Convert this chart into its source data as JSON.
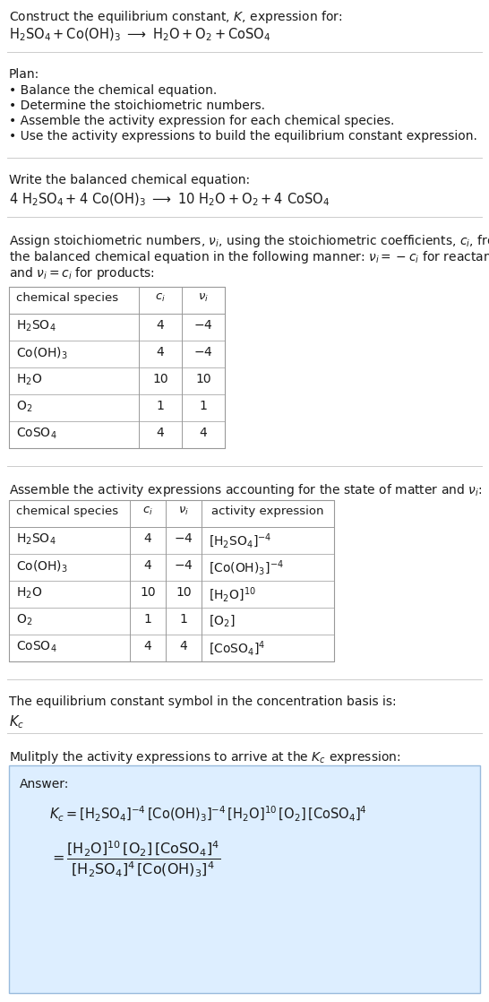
{
  "title_line1": "Construct the equilibrium constant, $K$, expression for:",
  "title_line2_plain": "H₂SO₄ + Co(OH)₃  ⟶  H₂O + O₂ + CoSO₄",
  "plan_header": "Plan:",
  "plan_items": [
    "• Balance the chemical equation.",
    "• Determine the stoichiometric numbers.",
    "• Assemble the activity expression for each chemical species.",
    "• Use the activity expressions to build the equilibrium constant expression."
  ],
  "balanced_header": "Write the balanced chemical equation:",
  "stoich_intro_lines": [
    "Assign stoichiometric numbers, $\\nu_i$, using the stoichiometric coefficients, $c_i$, from",
    "the balanced chemical equation in the following manner: $\\nu_i = -c_i$ for reactants",
    "and $\\nu_i = c_i$ for products:"
  ],
  "table1_headers": [
    "chemical species",
    "$c_i$",
    "$\\nu_i$"
  ],
  "table1_rows": [
    [
      "$\\mathrm{H_2SO_4}$",
      "4",
      "$-4$"
    ],
    [
      "$\\mathrm{Co(OH)_3}$",
      "4",
      "$-4$"
    ],
    [
      "$\\mathrm{H_2O}$",
      "10",
      "10"
    ],
    [
      "$\\mathrm{O_2}$",
      "1",
      "1"
    ],
    [
      "$\\mathrm{CoSO_4}$",
      "4",
      "4"
    ]
  ],
  "activity_intro": "Assemble the activity expressions accounting for the state of matter and $\\nu_i$:",
  "table2_headers": [
    "chemical species",
    "$c_i$",
    "$\\nu_i$",
    "activity expression"
  ],
  "table2_rows": [
    [
      "$\\mathrm{H_2SO_4}$",
      "4",
      "$-4$",
      "$[\\mathrm{H_2SO_4}]^{-4}$"
    ],
    [
      "$\\mathrm{Co(OH)_3}$",
      "4",
      "$-4$",
      "$[\\mathrm{Co(OH)_3}]^{-4}$"
    ],
    [
      "$\\mathrm{H_2O}$",
      "10",
      "10",
      "$[\\mathrm{H_2O}]^{10}$"
    ],
    [
      "$\\mathrm{O_2}$",
      "1",
      "1",
      "$[\\mathrm{O_2}]$"
    ],
    [
      "$\\mathrm{CoSO_4}$",
      "4",
      "4",
      "$[\\mathrm{CoSO_4}]^{4}$"
    ]
  ],
  "kc_intro": "The equilibrium constant symbol in the concentration basis is:",
  "kc_symbol": "$K_c$",
  "multiply_intro": "Mulitply the activity expressions to arrive at the $K_c$ expression:",
  "answer_label": "Answer:",
  "answer_line1": "$K_c = [\\mathrm{H_2SO_4}]^{-4}\\,[\\mathrm{Co(OH)_3}]^{-4}\\,[\\mathrm{H_2O}]^{10}\\,[\\mathrm{O_2}]\\,[\\mathrm{CoSO_4}]^4$",
  "answer_eq_line": "$= \\dfrac{[\\mathrm{H_2O}]^{10}\\,[\\mathrm{O_2}]\\,[\\mathrm{CoSO_4}]^4}{[\\mathrm{H_2SO_4}]^4\\,[\\mathrm{Co(OH)_3}]^4}$",
  "bg_color": "#ffffff",
  "text_color": "#1a1a1a",
  "table_line_color": "#999999",
  "section_line_color": "#cccccc",
  "answer_bg": "#ddeeff",
  "answer_border": "#99bbdd"
}
